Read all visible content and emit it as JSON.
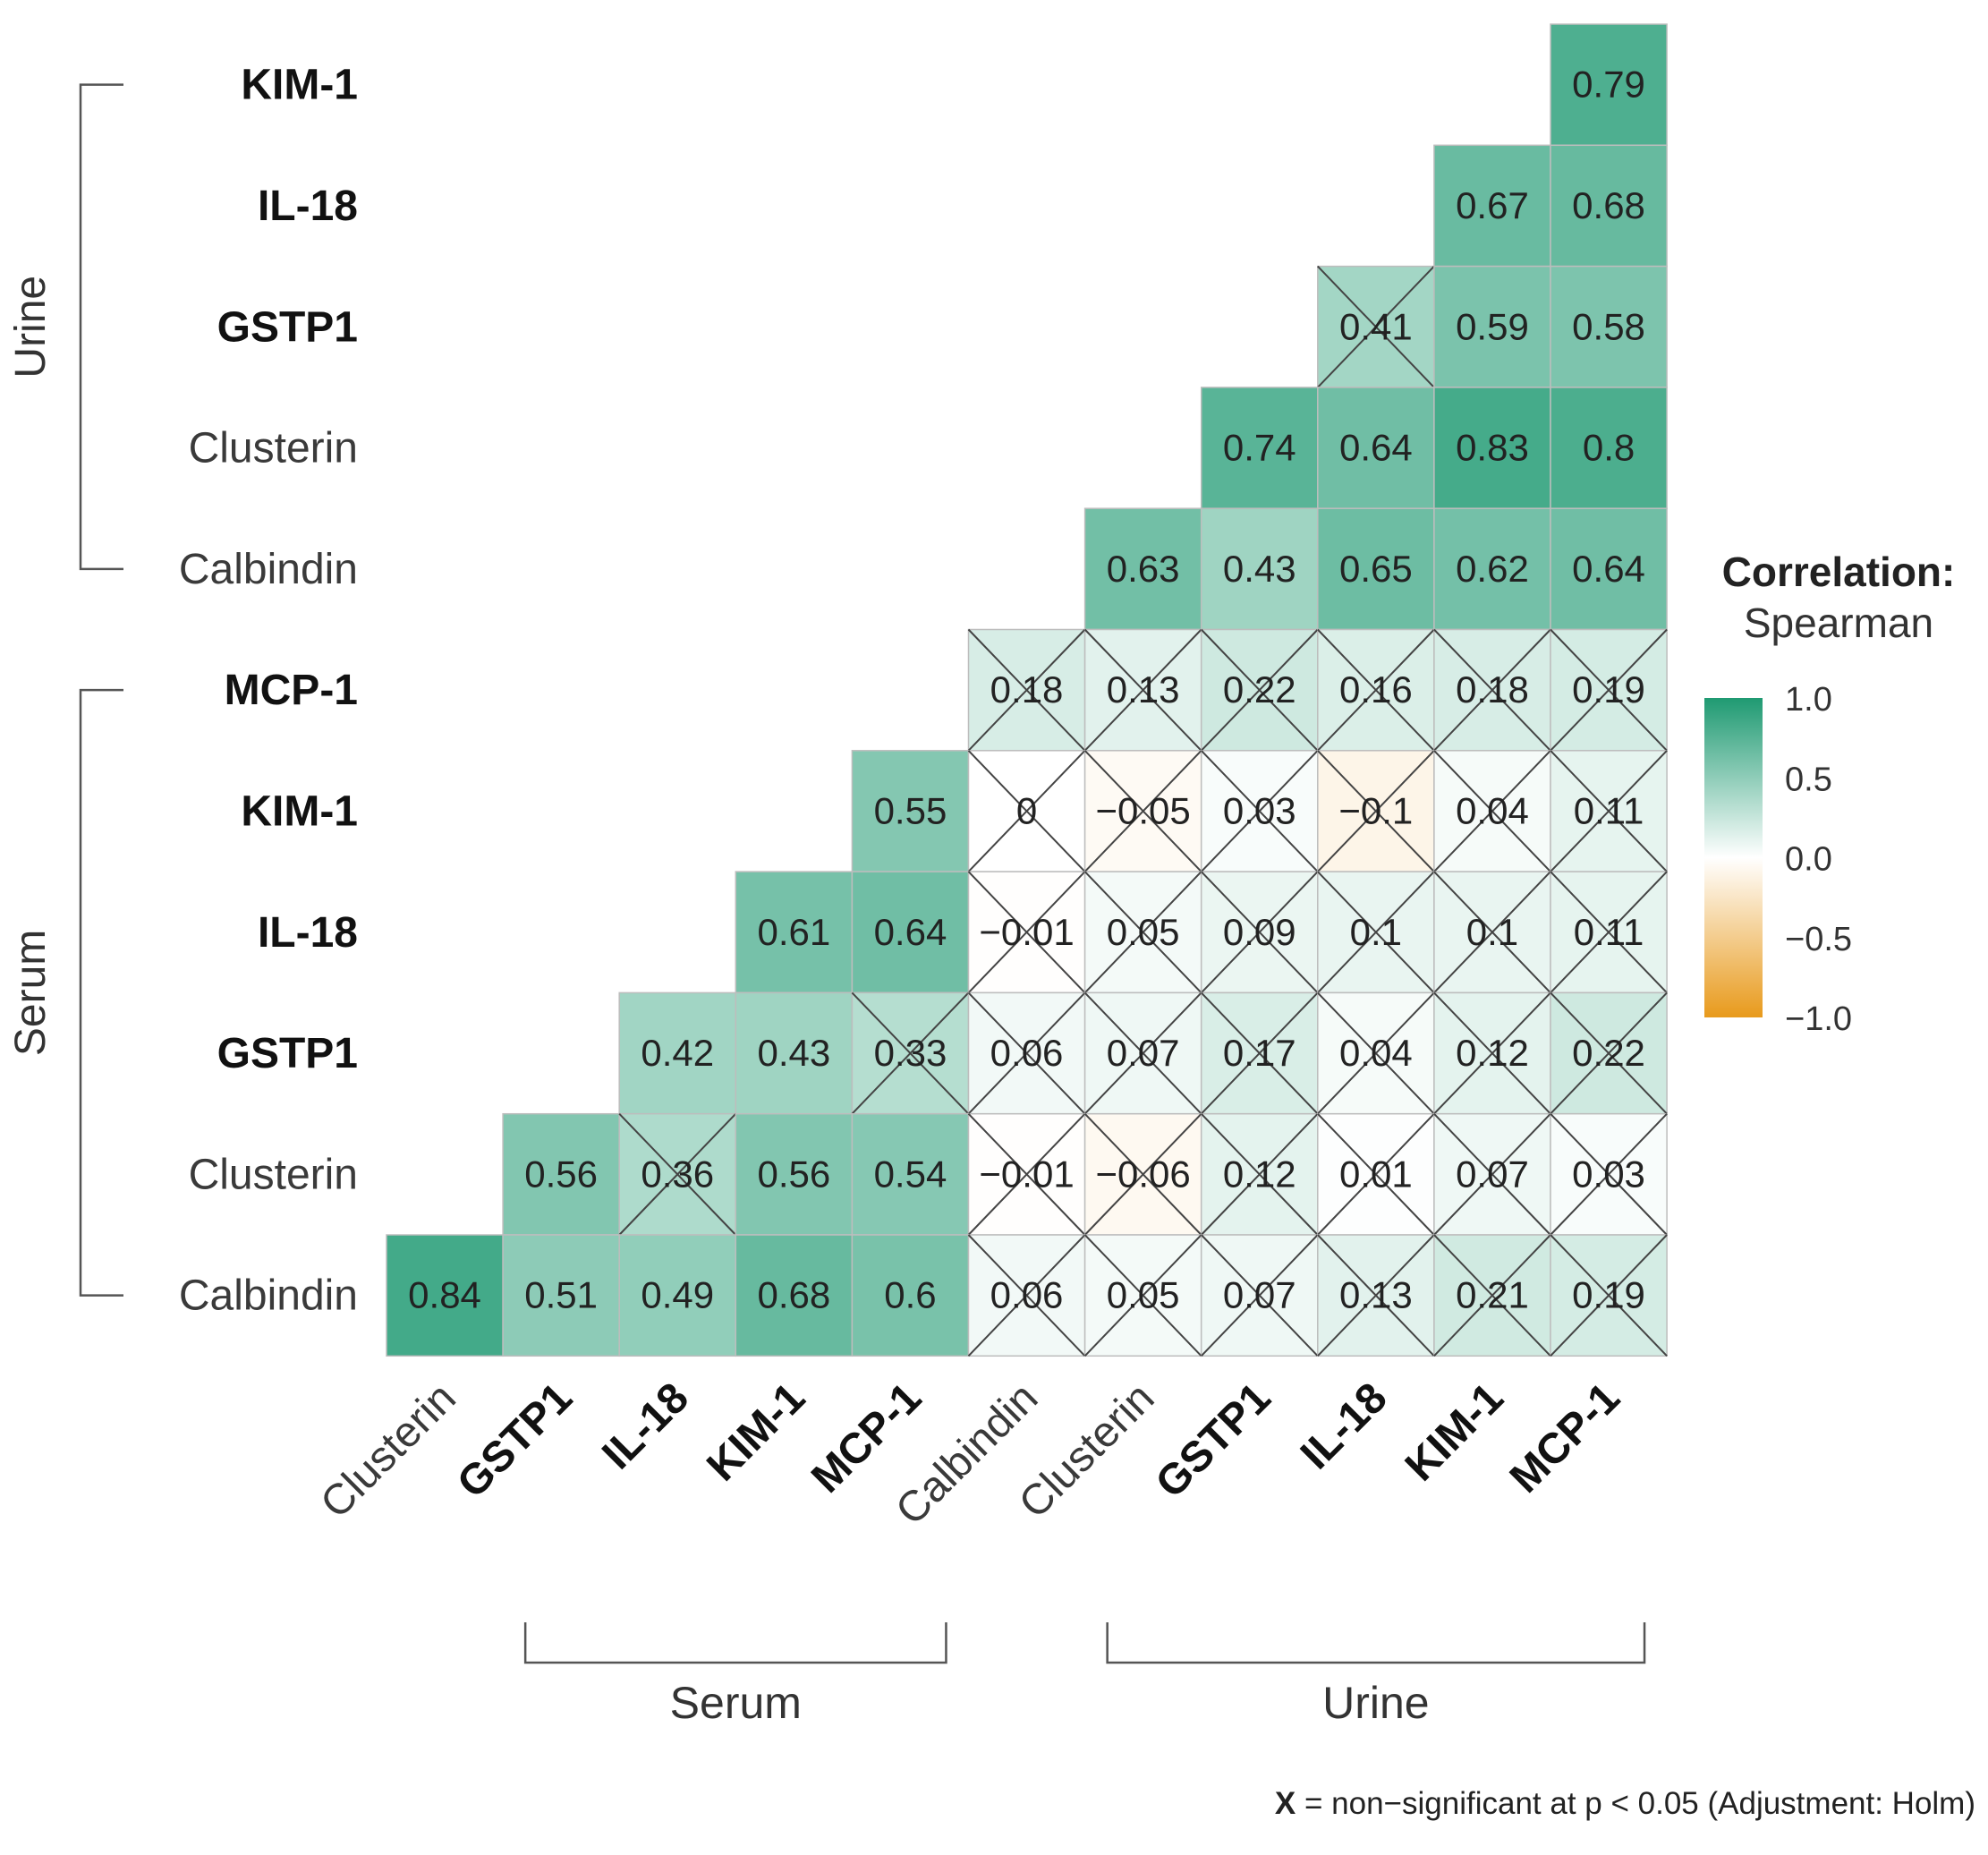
{
  "chart_data": {
    "type": "heatmap",
    "subtype": "lower-triangular correlation matrix",
    "row_labels": [
      "KIM-1",
      "IL-18",
      "GSTP1",
      "Clusterin",
      "Calbindin",
      "MCP-1",
      "KIM-1",
      "IL-18",
      "GSTP1",
      "Clusterin",
      "Calbindin"
    ],
    "column_labels": [
      "Clusterin",
      "GSTP1",
      "IL-18",
      "KIM-1",
      "MCP-1",
      "Calbindin",
      "Clusterin",
      "GSTP1",
      "IL-18",
      "KIM-1",
      "MCP-1"
    ],
    "row_groups": [
      {
        "label": "Urine",
        "row_start": 0,
        "row_end": 4
      },
      {
        "label": "Serum",
        "row_start": 5,
        "row_end": 10
      }
    ],
    "column_groups": [
      {
        "label": "Serum",
        "col_start": 1,
        "col_end": 4
      },
      {
        "label": "Urine",
        "col_start": 6,
        "col_end": 10
      }
    ],
    "bold_row_labels": [
      0,
      1,
      2,
      5,
      6,
      7,
      8
    ],
    "bold_column_labels": [
      1,
      2,
      3,
      4,
      7,
      8,
      9,
      10
    ],
    "cells": [
      [
        null,
        null,
        null,
        null,
        null,
        null,
        null,
        null,
        null,
        null,
        0.79
      ],
      [
        null,
        null,
        null,
        null,
        null,
        null,
        null,
        null,
        null,
        0.67,
        0.68
      ],
      [
        null,
        null,
        null,
        null,
        null,
        null,
        null,
        null,
        0.41,
        0.59,
        0.58
      ],
      [
        null,
        null,
        null,
        null,
        null,
        null,
        null,
        0.74,
        0.64,
        0.83,
        0.8
      ],
      [
        null,
        null,
        null,
        null,
        null,
        null,
        0.63,
        0.43,
        0.65,
        0.62,
        0.64
      ],
      [
        null,
        null,
        null,
        null,
        null,
        0.18,
        0.13,
        0.22,
        0.16,
        0.18,
        0.19
      ],
      [
        null,
        null,
        null,
        null,
        0.55,
        0,
        -0.05,
        0.03,
        -0.1,
        0.04,
        0.11
      ],
      [
        null,
        null,
        null,
        0.61,
        0.64,
        -0.01,
        0.05,
        0.09,
        0.1,
        0.1,
        0.11
      ],
      [
        null,
        null,
        0.42,
        0.43,
        0.33,
        0.06,
        0.07,
        0.17,
        0.04,
        0.12,
        0.22
      ],
      [
        null,
        0.56,
        0.36,
        0.56,
        0.54,
        -0.01,
        -0.06,
        0.12,
        0.01,
        0.07,
        0.03
      ],
      [
        0.84,
        0.51,
        0.49,
        0.68,
        0.6,
        0.06,
        0.05,
        0.07,
        0.13,
        0.21,
        0.19
      ]
    ],
    "non_significant": [
      [
        false,
        false,
        false,
        false,
        false,
        false,
        false,
        false,
        false,
        false,
        false
      ],
      [
        false,
        false,
        false,
        false,
        false,
        false,
        false,
        false,
        false,
        false,
        false
      ],
      [
        false,
        false,
        false,
        false,
        false,
        false,
        false,
        false,
        true,
        false,
        false
      ],
      [
        false,
        false,
        false,
        false,
        false,
        false,
        false,
        false,
        false,
        false,
        false
      ],
      [
        false,
        false,
        false,
        false,
        false,
        false,
        false,
        false,
        false,
        false,
        false
      ],
      [
        false,
        false,
        false,
        false,
        false,
        true,
        true,
        true,
        true,
        true,
        true
      ],
      [
        false,
        false,
        false,
        false,
        false,
        true,
        true,
        true,
        true,
        true,
        true
      ],
      [
        false,
        false,
        false,
        false,
        false,
        true,
        true,
        true,
        true,
        true,
        true
      ],
      [
        false,
        false,
        false,
        false,
        true,
        true,
        true,
        true,
        true,
        true,
        true
      ],
      [
        false,
        false,
        true,
        false,
        false,
        true,
        true,
        true,
        true,
        true,
        true
      ],
      [
        false,
        false,
        false,
        false,
        false,
        true,
        true,
        true,
        true,
        true,
        true
      ]
    ],
    "value_labels": [
      [
        null,
        null,
        null,
        null,
        null,
        null,
        null,
        null,
        null,
        null,
        "0.79"
      ],
      [
        null,
        null,
        null,
        null,
        null,
        null,
        null,
        null,
        null,
        "0.67",
        "0.68"
      ],
      [
        null,
        null,
        null,
        null,
        null,
        null,
        null,
        null,
        "0.41",
        "0.59",
        "0.58"
      ],
      [
        null,
        null,
        null,
        null,
        null,
        null,
        null,
        "0.74",
        "0.64",
        "0.83",
        "0.8"
      ],
      [
        null,
        null,
        null,
        null,
        null,
        null,
        "0.63",
        "0.43",
        "0.65",
        "0.62",
        "0.64"
      ],
      [
        null,
        null,
        null,
        null,
        null,
        "0.18",
        "0.13",
        "0.22",
        "0.16",
        "0.18",
        "0.19"
      ],
      [
        null,
        null,
        null,
        null,
        "0.55",
        "0",
        "−0.05",
        "0.03",
        "−0.1",
        "0.04",
        "0.11"
      ],
      [
        null,
        null,
        null,
        "0.61",
        "0.64",
        "−0.01",
        "0.05",
        "0.09",
        "0.1",
        "0.1",
        "0.11"
      ],
      [
        null,
        null,
        "0.42",
        "0.43",
        "0.33",
        "0.06",
        "0.07",
        "0.17",
        "0.04",
        "0.12",
        "0.22"
      ],
      [
        null,
        "0.56",
        "0.36",
        "0.56",
        "0.54",
        "−0.01",
        "−0.06",
        "0.12",
        "0.01",
        "0.07",
        "0.03"
      ],
      [
        "0.84",
        "0.51",
        "0.49",
        "0.68",
        "0.6",
        "0.06",
        "0.05",
        "0.07",
        "0.13",
        "0.21",
        "0.19"
      ]
    ],
    "legend": {
      "title_line1": "Correlation:",
      "title_line2": "Spearman",
      "ticks": [
        "1.0",
        "0.5",
        "0.0",
        "−0.5",
        "−1.0"
      ],
      "range": [
        -1,
        1
      ],
      "colors": {
        "high": "#1f9a72",
        "mid": "#ffffff",
        "low": "#e89a1c"
      }
    },
    "footnote_mark": "X",
    "footnote_text": " = non−significant at p < 0.05 (Adjustment: Holm)"
  }
}
